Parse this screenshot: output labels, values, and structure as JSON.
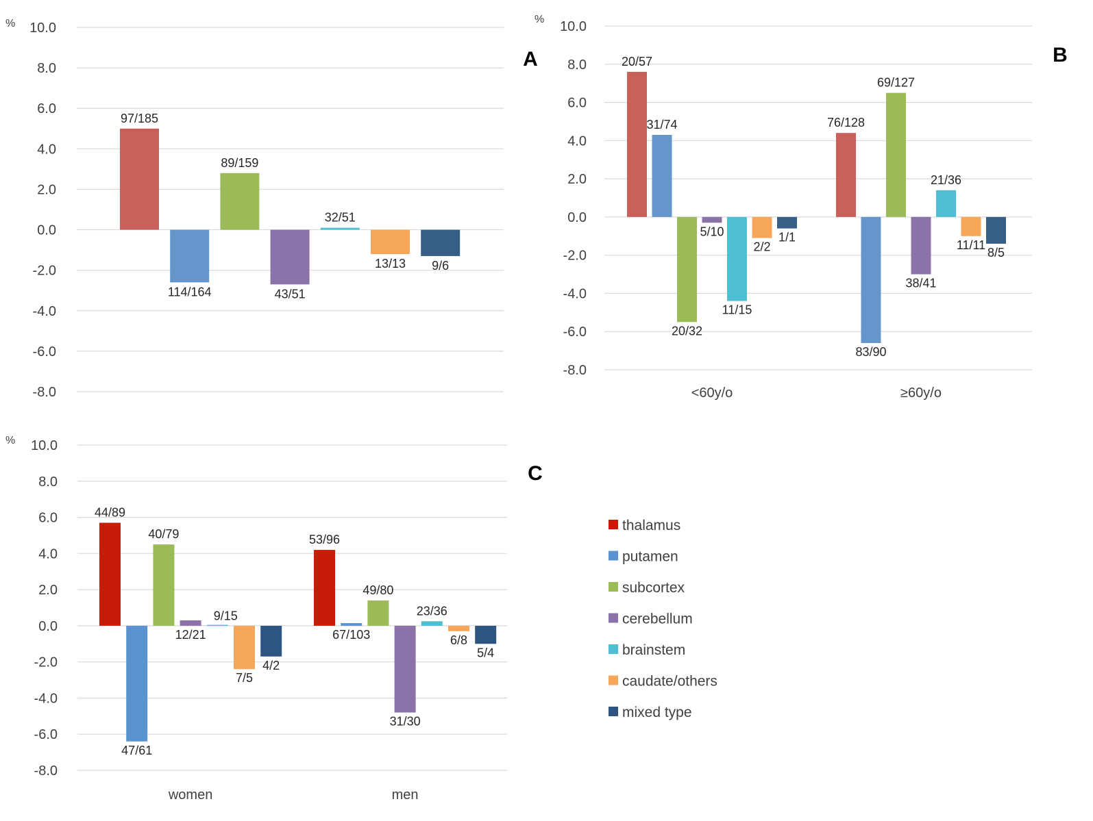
{
  "legend": [
    {
      "key": "thalamus",
      "label": "thalamus"
    },
    {
      "key": "putamen",
      "label": "putamen"
    },
    {
      "key": "subcortex",
      "label": "subcortex"
    },
    {
      "key": "cerebellum",
      "label": "cerebellum"
    },
    {
      "key": "brainstem",
      "label": "brainstem"
    },
    {
      "key": "caudate",
      "label": "caudate/others"
    },
    {
      "key": "mixed",
      "label": "mixed type"
    }
  ],
  "chart_data": [
    {
      "panel": "A",
      "type": "bar",
      "unit_label": "%",
      "ylim": [
        -8,
        10
      ],
      "yticks": [
        "10.0",
        "8.0",
        "6.0",
        "4.0",
        "2.0",
        "0.0",
        "-2.0",
        "-4.0",
        "-6.0",
        "-8.0"
      ],
      "colors": {
        "thalamus": "#c9605a",
        "putamen": "#6596cb",
        "subcortex": "#9bbb59",
        "cerebellum": "#8b73a9",
        "brainstem": "#4fbdd2",
        "caudate": "#f6a659",
        "mixed": "#375e86"
      },
      "categories": [
        ""
      ],
      "series": [
        {
          "key": "thalamus",
          "name": "thalamus",
          "values": [
            5.0
          ],
          "labels": [
            "97/185"
          ]
        },
        {
          "key": "putamen",
          "name": "putamen",
          "values": [
            -2.6
          ],
          "labels": [
            "114/164"
          ]
        },
        {
          "key": "subcortex",
          "name": "subcortex",
          "values": [
            2.8
          ],
          "labels": [
            "89/159"
          ]
        },
        {
          "key": "cerebellum",
          "name": "cerebellum",
          "values": [
            -2.7
          ],
          "labels": [
            "43/51"
          ]
        },
        {
          "key": "brainstem",
          "name": "brainstem",
          "values": [
            0.1
          ],
          "labels": [
            "32/51"
          ]
        },
        {
          "key": "caudate",
          "name": "caudate/others",
          "values": [
            -1.2
          ],
          "labels": [
            "13/13"
          ]
        },
        {
          "key": "mixed",
          "name": "mixed type",
          "values": [
            -1.3
          ],
          "labels": [
            "9/6"
          ]
        }
      ]
    },
    {
      "panel": "B",
      "type": "bar",
      "unit_label": "%",
      "ylim": [
        -8,
        10
      ],
      "yticks": [
        "10.0",
        "8.0",
        "6.0",
        "4.0",
        "2.0",
        "0.0",
        "-2.0",
        "-4.0",
        "-6.0",
        "-8.0"
      ],
      "colors": {
        "thalamus": "#c9605a",
        "putamen": "#6596cb",
        "subcortex": "#9bbb59",
        "cerebellum": "#8b73a9",
        "brainstem": "#4fbdd2",
        "caudate": "#f6a659",
        "mixed": "#375e86"
      },
      "categories": [
        "<60y/o",
        "≥60y/o"
      ],
      "series": [
        {
          "key": "thalamus",
          "name": "thalamus",
          "values": [
            7.6,
            4.4
          ],
          "labels": [
            "20/57",
            "76/128"
          ]
        },
        {
          "key": "putamen",
          "name": "putamen",
          "values": [
            4.3,
            -6.6
          ],
          "labels": [
            "31/74",
            "83/90"
          ]
        },
        {
          "key": "subcortex",
          "name": "subcortex",
          "values": [
            -5.5,
            6.5
          ],
          "labels": [
            "20/32",
            "69/127"
          ]
        },
        {
          "key": "cerebellum",
          "name": "cerebellum",
          "values": [
            -0.3,
            -3.0
          ],
          "labels": [
            "5/10",
            "38/41"
          ]
        },
        {
          "key": "brainstem",
          "name": "brainstem",
          "values": [
            -4.4,
            1.4
          ],
          "labels": [
            "11/15",
            "21/36"
          ]
        },
        {
          "key": "caudate",
          "name": "caudate/others",
          "values": [
            -1.1,
            -1.0
          ],
          "labels": [
            "2/2",
            "11/11"
          ]
        },
        {
          "key": "mixed",
          "name": "mixed type",
          "values": [
            -0.6,
            -1.4
          ],
          "labels": [
            "1/1",
            "8/5"
          ]
        }
      ]
    },
    {
      "panel": "C",
      "type": "bar",
      "unit_label": "%",
      "ylim": [
        -8,
        10
      ],
      "yticks": [
        "10.0",
        "8.0",
        "6.0",
        "4.0",
        "2.0",
        "0.0",
        "-2.0",
        "-4.0",
        "-6.0",
        "-8.0"
      ],
      "colors": {
        "thalamus": "#c81c08",
        "putamen": "#5b93d1",
        "subcortex": "#9bbb59",
        "cerebellum": "#8b73a9",
        "brainstem": "#4fbdd2",
        "caudate": "#f6a659",
        "mixed": "#2e557f"
      },
      "categories": [
        "women",
        "men"
      ],
      "series": [
        {
          "key": "thalamus",
          "name": "thalamus",
          "values": [
            5.7,
            4.2
          ],
          "labels": [
            "44/89",
            "53/96"
          ]
        },
        {
          "key": "putamen",
          "name": "putamen",
          "values": [
            -6.4,
            0.15
          ],
          "labels": [
            "47/61",
            "67/103"
          ]
        },
        {
          "key": "subcortex",
          "name": "subcortex",
          "values": [
            4.5,
            1.4
          ],
          "labels": [
            "40/79",
            "49/80"
          ]
        },
        {
          "key": "cerebellum",
          "name": "cerebellum",
          "values": [
            0.3,
            -4.8
          ],
          "labels": [
            "12/21",
            "31/30"
          ]
        },
        {
          "key": "brainstem",
          "name": "brainstem",
          "values": [
            0.05,
            0.25
          ],
          "labels": [
            "9/15",
            "23/36"
          ]
        },
        {
          "key": "caudate",
          "name": "caudate/others",
          "values": [
            -2.4,
            -0.3
          ],
          "labels": [
            "7/5",
            "6/8"
          ]
        },
        {
          "key": "mixed",
          "name": "mixed type",
          "values": [
            -1.7,
            -1.0
          ],
          "labels": [
            "4/2",
            "5/4"
          ]
        }
      ]
    }
  ]
}
